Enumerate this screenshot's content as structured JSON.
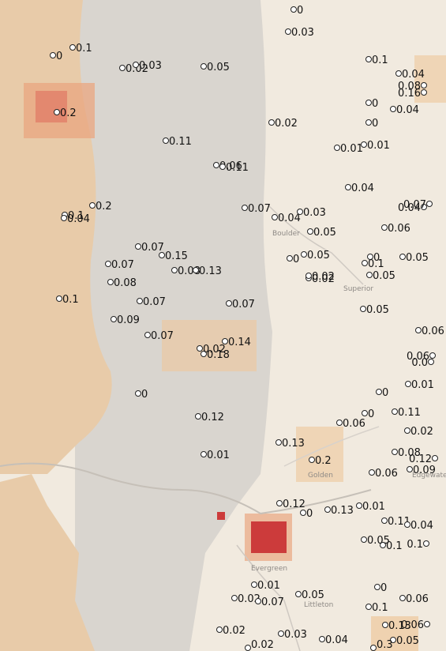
{
  "map": {
    "colors": {
      "land_light": "#f1eadf",
      "foothills_gray": "#d6d2cc",
      "mountain_tan": "#ecd2b4",
      "heat_low": "#eec79b",
      "heat_mid": "#e9a680",
      "heat_high": "#cc3b3b"
    },
    "place_labels": [
      "Boulder",
      "Superior",
      "Golden",
      "Evergreen",
      "Littleton",
      "Edgewater"
    ],
    "stations": [
      {
        "value": "0"
      },
      {
        "value": "0.03"
      },
      {
        "value": "0.1"
      },
      {
        "value": "0"
      },
      {
        "value": "0.02"
      },
      {
        "value": "0.03"
      },
      {
        "value": "0.05"
      },
      {
        "value": "0.1"
      },
      {
        "value": "0.04"
      },
      {
        "value": "0.08"
      },
      {
        "value": "0.16"
      },
      {
        "value": "0.2"
      },
      {
        "value": "0"
      },
      {
        "value": "0.04"
      },
      {
        "value": "0"
      },
      {
        "value": "0.02"
      },
      {
        "value": "0.11"
      },
      {
        "value": "0.01"
      },
      {
        "value": "0.01"
      },
      {
        "value": "0.06"
      },
      {
        "value": "0.11"
      },
      {
        "value": "0.04"
      },
      {
        "value": "0.2"
      },
      {
        "value": "0.1"
      },
      {
        "value": "0.04"
      },
      {
        "value": "0.07"
      },
      {
        "value": "0.04"
      },
      {
        "value": "0.03"
      },
      {
        "value": "0.04"
      },
      {
        "value": "0.07"
      },
      {
        "value": "0.05"
      },
      {
        "value": "0.06"
      },
      {
        "value": "0.07"
      },
      {
        "value": "0.15"
      },
      {
        "value": "0"
      },
      {
        "value": "0.05"
      },
      {
        "value": "0"
      },
      {
        "value": "0.05"
      },
      {
        "value": "0.07"
      },
      {
        "value": "0.08"
      },
      {
        "value": "0.13"
      },
      {
        "value": "0.1"
      },
      {
        "value": "0.02"
      },
      {
        "value": "0.02"
      },
      {
        "value": "0.05"
      },
      {
        "value": "0.08"
      },
      {
        "value": "0.1"
      },
      {
        "value": "0.07"
      },
      {
        "value": "0.07"
      },
      {
        "value": "0.05"
      },
      {
        "value": "0.06"
      },
      {
        "value": "0.09"
      },
      {
        "value": "0.07"
      },
      {
        "value": "0.06"
      },
      {
        "value": "0.14"
      },
      {
        "value": "0.18"
      },
      {
        "value": "0.02"
      },
      {
        "value": "0.12"
      },
      {
        "value": "0"
      },
      {
        "value": "0.01"
      },
      {
        "value": "0.01"
      },
      {
        "value": "0"
      },
      {
        "value": "0.11"
      },
      {
        "value": "0.06"
      },
      {
        "value": "0"
      },
      {
        "value": "0.12"
      },
      {
        "value": "0.02"
      },
      {
        "value": "0.13"
      },
      {
        "value": "0.08"
      },
      {
        "value": "0.0"
      },
      {
        "value": "0.01"
      },
      {
        "value": "0.2"
      },
      {
        "value": "0.06"
      },
      {
        "value": "0.09"
      },
      {
        "value": "0.12"
      },
      {
        "value": "0"
      },
      {
        "value": "0.13"
      },
      {
        "value": "0.11"
      },
      {
        "value": "0.04"
      },
      {
        "value": "0.05"
      },
      {
        "value": "0.1"
      },
      {
        "value": "0.1"
      },
      {
        "value": "0.01"
      },
      {
        "value": "0.02"
      },
      {
        "value": "0.07"
      },
      {
        "value": "0.05"
      },
      {
        "value": "0"
      },
      {
        "value": "0.06"
      },
      {
        "value": "0.02"
      },
      {
        "value": "0.03"
      },
      {
        "value": "0.04"
      },
      {
        "value": "0.1"
      },
      {
        "value": "0.13"
      },
      {
        "value": "0.05"
      },
      {
        "value": "0.06"
      },
      {
        "value": "0.3"
      },
      {
        "value": "0.02"
      }
    ]
  }
}
